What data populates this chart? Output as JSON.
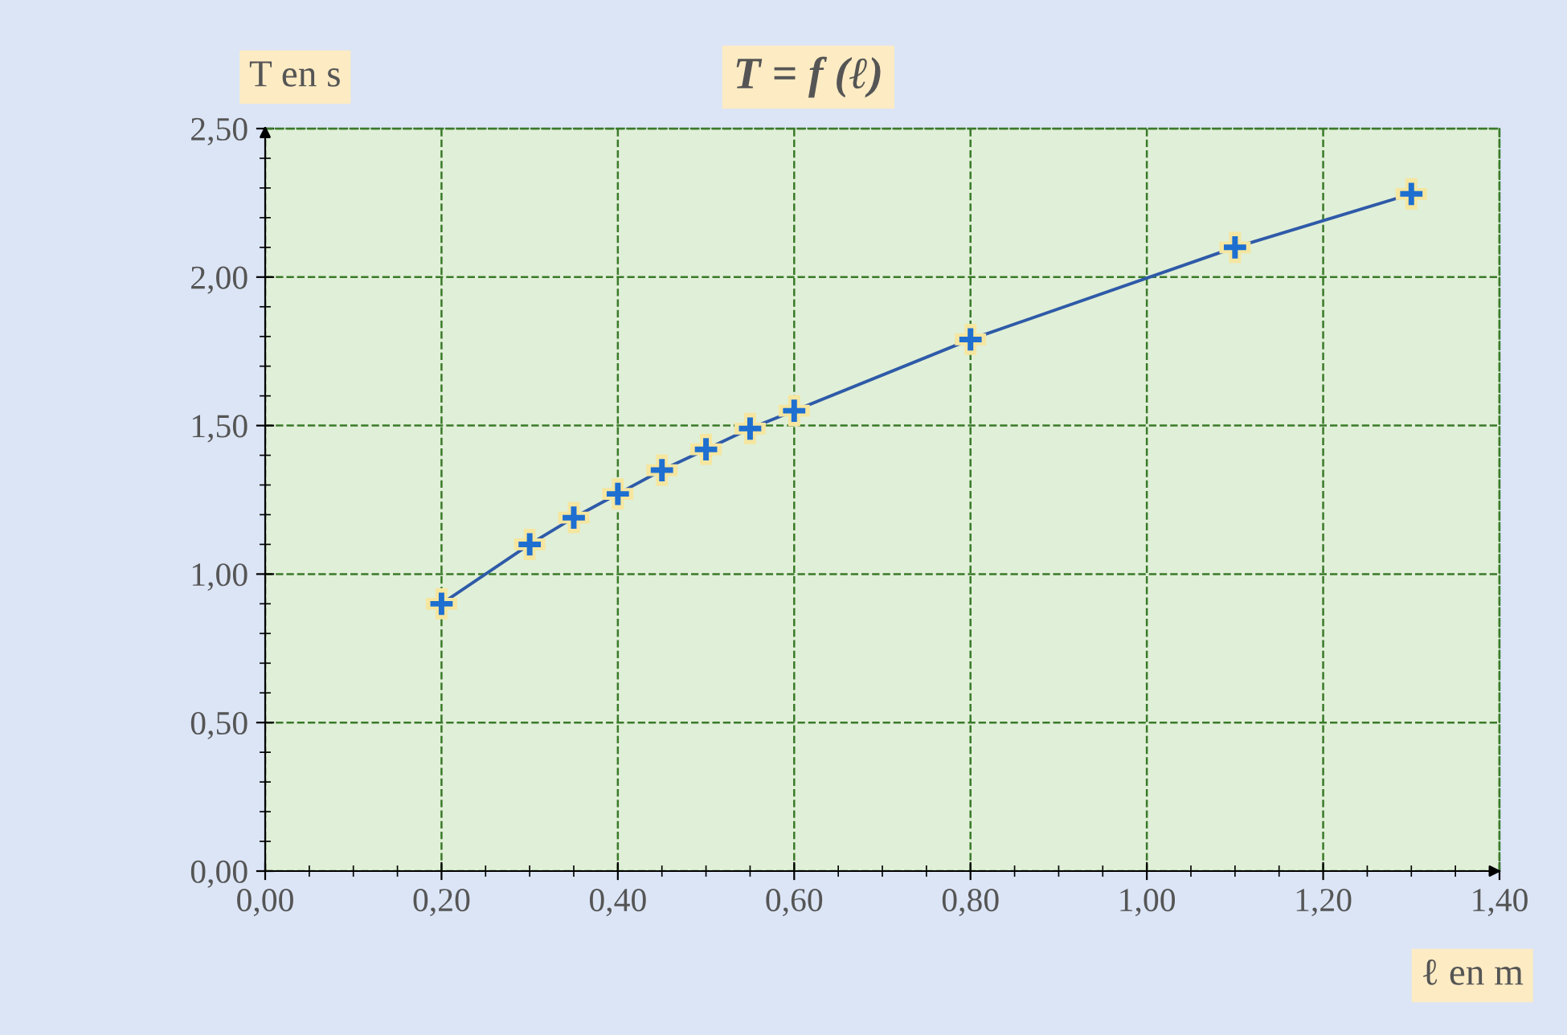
{
  "chart_data": {
    "type": "line",
    "title": "T = f (ℓ)",
    "xlabel": "ℓ en m",
    "ylabel": "T en s",
    "x": [
      0.2,
      0.3,
      0.35,
      0.4,
      0.45,
      0.5,
      0.55,
      0.6,
      0.8,
      1.1,
      1.3
    ],
    "series": [
      {
        "color": "#2e5aa8",
        "values": [
          0.9,
          1.1,
          1.19,
          1.27,
          1.35,
          1.42,
          1.49,
          1.55,
          1.79,
          2.1,
          2.28
        ]
      }
    ],
    "xlim": [
      0,
      1.4
    ],
    "ylim": [
      0,
      2.5
    ],
    "xticks": [
      {
        "value": 0,
        "label": "0,00"
      },
      {
        "value": 0.2,
        "label": "0,20"
      },
      {
        "value": 0.4,
        "label": "0,40"
      },
      {
        "value": 0.6,
        "label": "0,60"
      },
      {
        "value": 0.8,
        "label": "0,80"
      },
      {
        "value": 1.0,
        "label": "1,00"
      },
      {
        "value": 1.2,
        "label": "1,20"
      },
      {
        "value": 1.4,
        "label": "1,40"
      }
    ],
    "yticks": [
      {
        "value": 0,
        "label": "0,00"
      },
      {
        "value": 0.5,
        "label": "0,50"
      },
      {
        "value": 1.0,
        "label": "1,00"
      },
      {
        "value": 1.5,
        "label": "1,50"
      },
      {
        "value": 2.0,
        "label": "2,00"
      },
      {
        "value": 2.5,
        "label": "2,50"
      }
    ],
    "grid": true,
    "marker": "cross",
    "line_style": "solid"
  }
}
